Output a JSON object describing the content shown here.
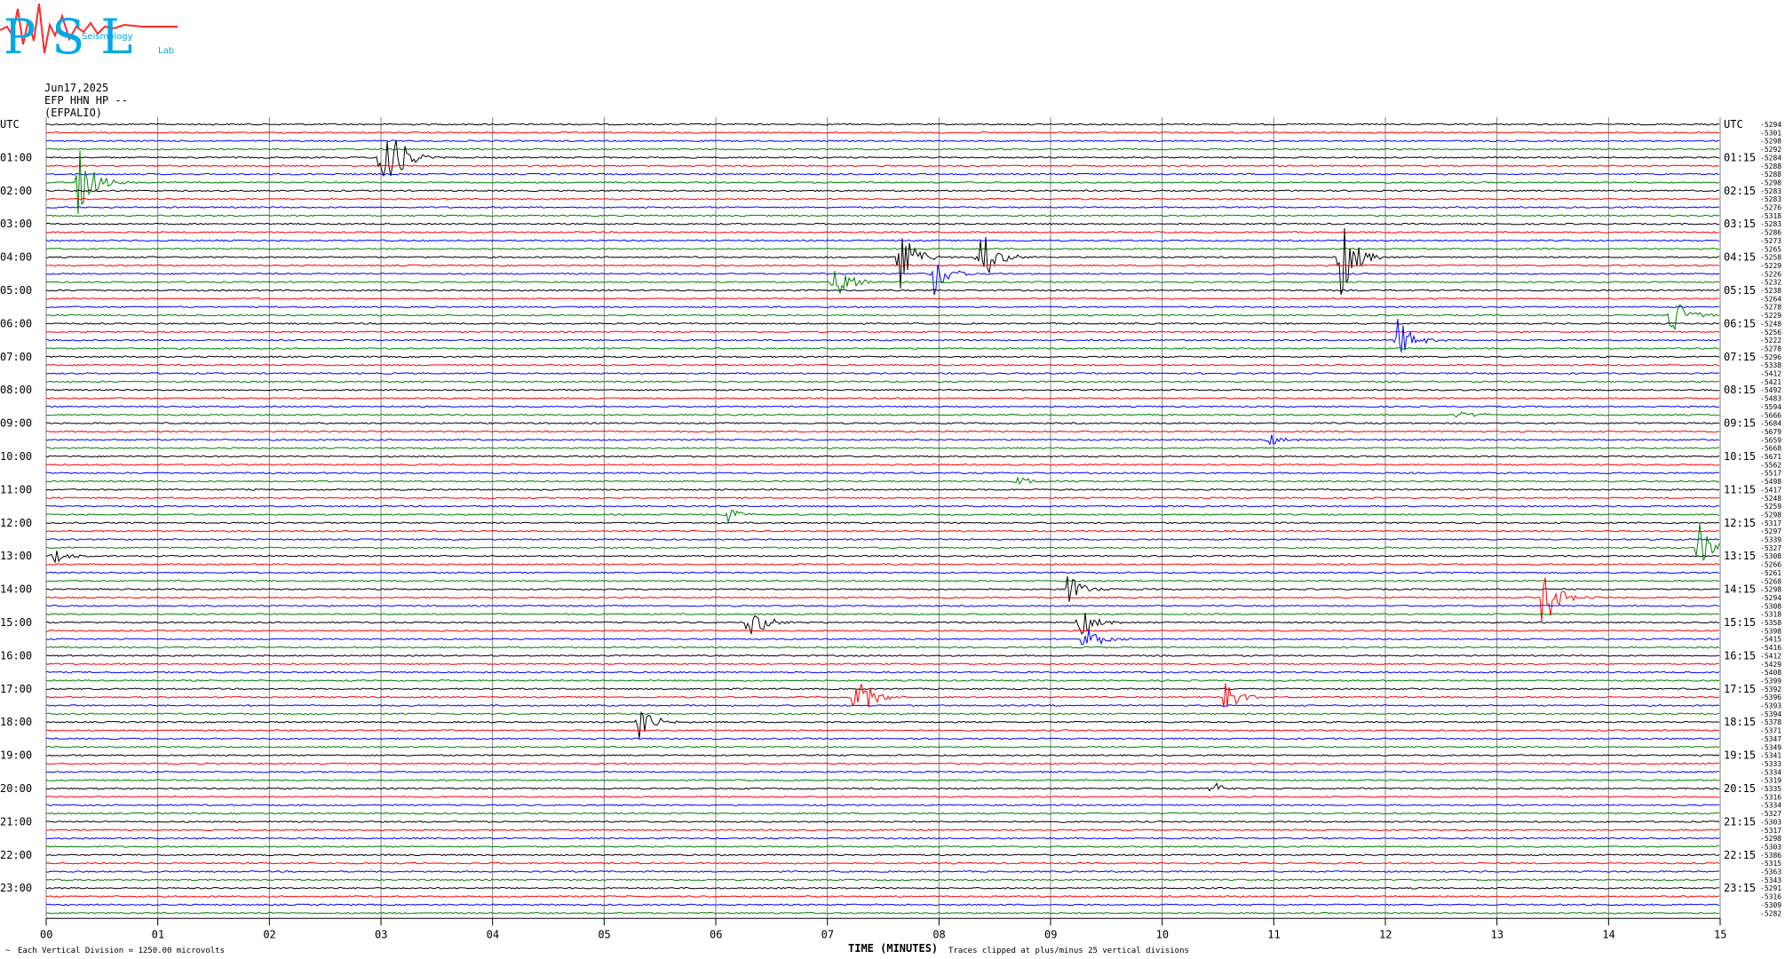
{
  "logo": {
    "text": "PSL",
    "subtitle_a": "Seismology",
    "subtitle_b": "Lab"
  },
  "header": {
    "date": "Jun17,2025",
    "channel": "EFP HHN HP --",
    "station": "(EFPALIO)"
  },
  "left_axis_label": "UTC",
  "right_axis_label": "UTC",
  "footer": {
    "left": "Each Vertical Division = 1250.00 microvolts",
    "right": "Traces clipped at plus/minus 25 vertical divisions",
    "corner": "~"
  },
  "colors": {
    "black": "#000000",
    "red": "#ff0000",
    "blue": "#0000ff",
    "green": "#008000",
    "grid": "#808080"
  },
  "chart_data": {
    "type": "line",
    "xlabel": "TIME (MINUTES)",
    "x_ticks": [
      "00",
      "01",
      "02",
      "03",
      "04",
      "05",
      "06",
      "07",
      "08",
      "09",
      "10",
      "11",
      "12",
      "13",
      "14",
      "15"
    ],
    "xlim": [
      0,
      15
    ],
    "trace_count": 96,
    "trace_color_cycle": [
      "black",
      "red",
      "blue",
      "green"
    ],
    "left_hour_labels": [
      "UTC",
      "01:00",
      "02:00",
      "03:00",
      "04:00",
      "05:00",
      "06:00",
      "07:00",
      "08:00",
      "09:00",
      "10:00",
      "11:00",
      "12:00",
      "13:00",
      "14:00",
      "15:00",
      "16:00",
      "17:00",
      "18:00",
      "19:00",
      "20:00",
      "21:00",
      "22:00",
      "23:00"
    ],
    "right_hour_labels": [
      "UTC",
      "01:15",
      "02:15",
      "03:15",
      "04:15",
      "05:15",
      "06:15",
      "07:15",
      "08:15",
      "09:15",
      "10:15",
      "11:15",
      "12:15",
      "13:15",
      "14:15",
      "15:15",
      "16:15",
      "17:15",
      "18:15",
      "19:15",
      "20:15",
      "21:15",
      "22:15",
      "23:15"
    ],
    "trace_offsets": [
      "-5294",
      "-5301",
      "-5298",
      "-5292",
      "-5284",
      "-5288",
      "-5288",
      "-5298",
      "-5283",
      "-5283",
      "-5276",
      "-5318",
      "-5283",
      "-5286",
      "-5273",
      "-5265",
      "-5258",
      "-5229",
      "-5226",
      "-5232",
      "-5238",
      "-5264",
      "-5278",
      "-5229",
      "-5248",
      "-5256",
      "-5222",
      "-5278",
      "-5296",
      "-5338",
      "-5412",
      "-5421",
      "-5492",
      "-5483",
      "-5594",
      "-5666",
      "-5684",
      "-5679",
      "-5659",
      "-5668",
      "-5671",
      "-5562",
      "-5517",
      "-5498",
      "-5417",
      "-5248",
      "-5259",
      "-5298",
      "-5317",
      "-5297",
      "-5339",
      "-5327",
      "-5308",
      "-5266",
      "-5261",
      "-5268",
      "-5298",
      "-5294",
      "-5308",
      "-5318",
      "-5358",
      "-5398",
      "-5415",
      "-5416",
      "-5412",
      "-5429",
      "-5408",
      "-5399",
      "-5392",
      "-5396",
      "-5393",
      "-5394",
      "-5378",
      "-5371",
      "-5347",
      "-5349",
      "-5341",
      "-5333",
      "-5334",
      "-5319",
      "-5335",
      "-5316",
      "-5334",
      "-5327",
      "-5303",
      "-5317",
      "-5298",
      "-5303",
      "-5386",
      "-5315",
      "-5363",
      "-5343",
      "-5291",
      "-5316",
      "-5309",
      "-5282"
    ],
    "events": [
      {
        "trace": 4,
        "minute": 3.0,
        "amplitude": 18
      },
      {
        "trace": 7,
        "minute": 0.28,
        "amplitude": 10
      },
      {
        "trace": 16,
        "minute": 7.65,
        "amplitude": 8
      },
      {
        "trace": 16,
        "minute": 8.35,
        "amplitude": 10
      },
      {
        "trace": 16,
        "minute": 11.6,
        "amplitude": 10
      },
      {
        "trace": 18,
        "minute": 7.95,
        "amplitude": 6
      },
      {
        "trace": 19,
        "minute": 7.05,
        "amplitude": 6
      },
      {
        "trace": 23,
        "minute": 14.55,
        "amplitude": 8
      },
      {
        "trace": 26,
        "minute": 12.1,
        "amplitude": 6
      },
      {
        "trace": 35,
        "minute": 12.65,
        "amplitude": 2
      },
      {
        "trace": 38,
        "minute": 10.95,
        "amplitude": 1.5
      },
      {
        "trace": 43,
        "minute": 8.7,
        "amplitude": 1.5
      },
      {
        "trace": 47,
        "minute": 6.1,
        "amplitude": 2
      },
      {
        "trace": 51,
        "minute": 14.8,
        "amplitude": 7
      },
      {
        "trace": 52,
        "minute": 0.05,
        "amplitude": 2
      },
      {
        "trace": 56,
        "minute": 9.15,
        "amplitude": 4
      },
      {
        "trace": 57,
        "minute": 13.4,
        "amplitude": 9
      },
      {
        "trace": 60,
        "minute": 6.3,
        "amplitude": 5
      },
      {
        "trace": 60,
        "minute": 9.25,
        "amplitude": 4
      },
      {
        "trace": 62,
        "minute": 9.3,
        "amplitude": 4
      },
      {
        "trace": 69,
        "minute": 7.25,
        "amplitude": 8
      },
      {
        "trace": 69,
        "minute": 10.55,
        "amplitude": 5
      },
      {
        "trace": 72,
        "minute": 5.3,
        "amplitude": 5
      },
      {
        "trace": 80,
        "minute": 10.45,
        "amplitude": 2
      }
    ]
  }
}
